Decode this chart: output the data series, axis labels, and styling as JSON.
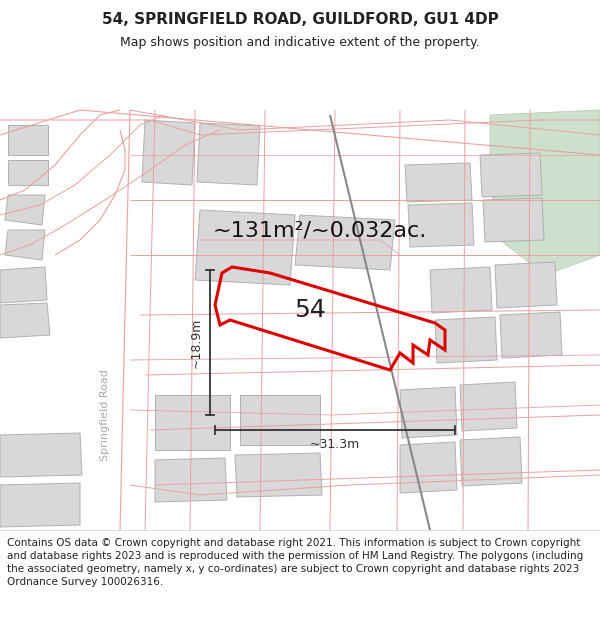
{
  "title": "54, SPRINGFIELD ROAD, GUILDFORD, GU1 4DP",
  "subtitle": "Map shows position and indicative extent of the property.",
  "area_text": "~131m²/~0.032ac.",
  "label_54": "54",
  "dim_width": "~31.3m",
  "dim_height": "~18.9m",
  "road_label": "Springfield Road",
  "footer": "Contains OS data © Crown copyright and database right 2021. This information is subject to Crown copyright and database rights 2023 and is reproduced with the permission of HM Land Registry. The polygons (including the associated geometry, namely x, y co-ordinates) are subject to Crown copyright and database rights 2023 Ordnance Survey 100026316.",
  "bg_color": "#ffffff",
  "footer_bg": "#f0f0ee",
  "building_fill": "#d8d8d8",
  "building_edge": "#b0b0b0",
  "pink_line": "#e8a0a0",
  "red_polygon": "#dd0000",
  "green_fill": "#cde0cd",
  "dim_color": "#333333",
  "road_label_color": "#aaaaaa",
  "title_fontsize": 11,
  "subtitle_fontsize": 9,
  "area_fontsize": 16,
  "label_fontsize": 18,
  "dim_fontsize": 9,
  "road_label_fontsize": 8,
  "footer_fontsize": 7.5
}
